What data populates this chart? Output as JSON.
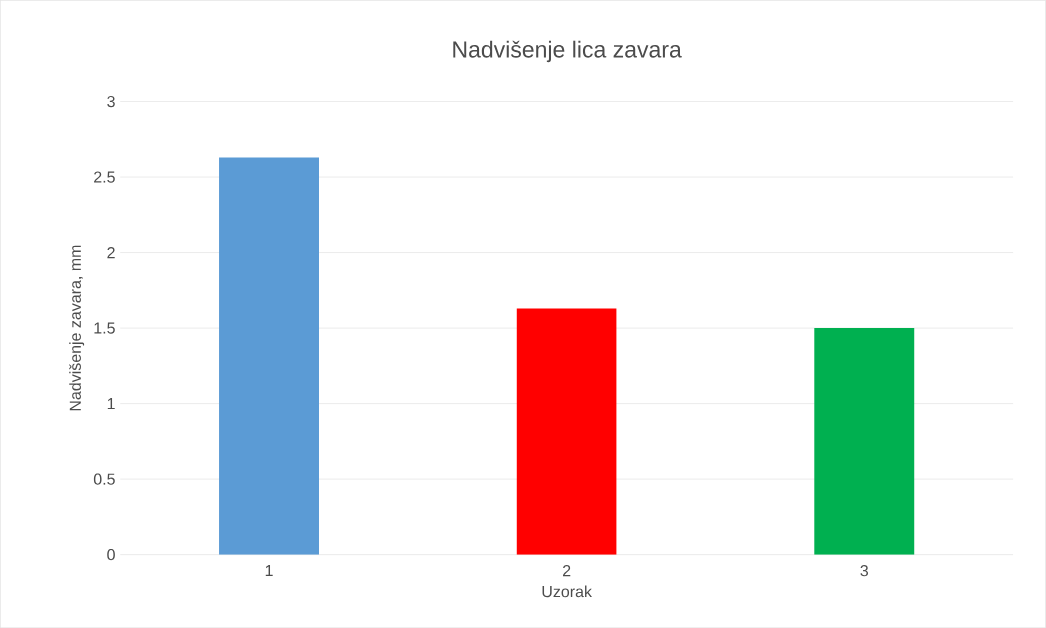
{
  "chart_data": {
    "type": "bar",
    "title": "Nadvišenje lica zavara",
    "xlabel": "Uzorak",
    "ylabel": "Nadvišenje zavara, mm",
    "categories": [
      "1",
      "2",
      "3"
    ],
    "values": [
      2.63,
      1.63,
      1.5
    ],
    "colors": [
      "#5b9bd5",
      "#ff0000",
      "#00b050"
    ],
    "ylim": [
      0,
      3
    ],
    "yticks": [
      0,
      0.5,
      1,
      1.5,
      2,
      2.5,
      3
    ],
    "grid": "y"
  }
}
